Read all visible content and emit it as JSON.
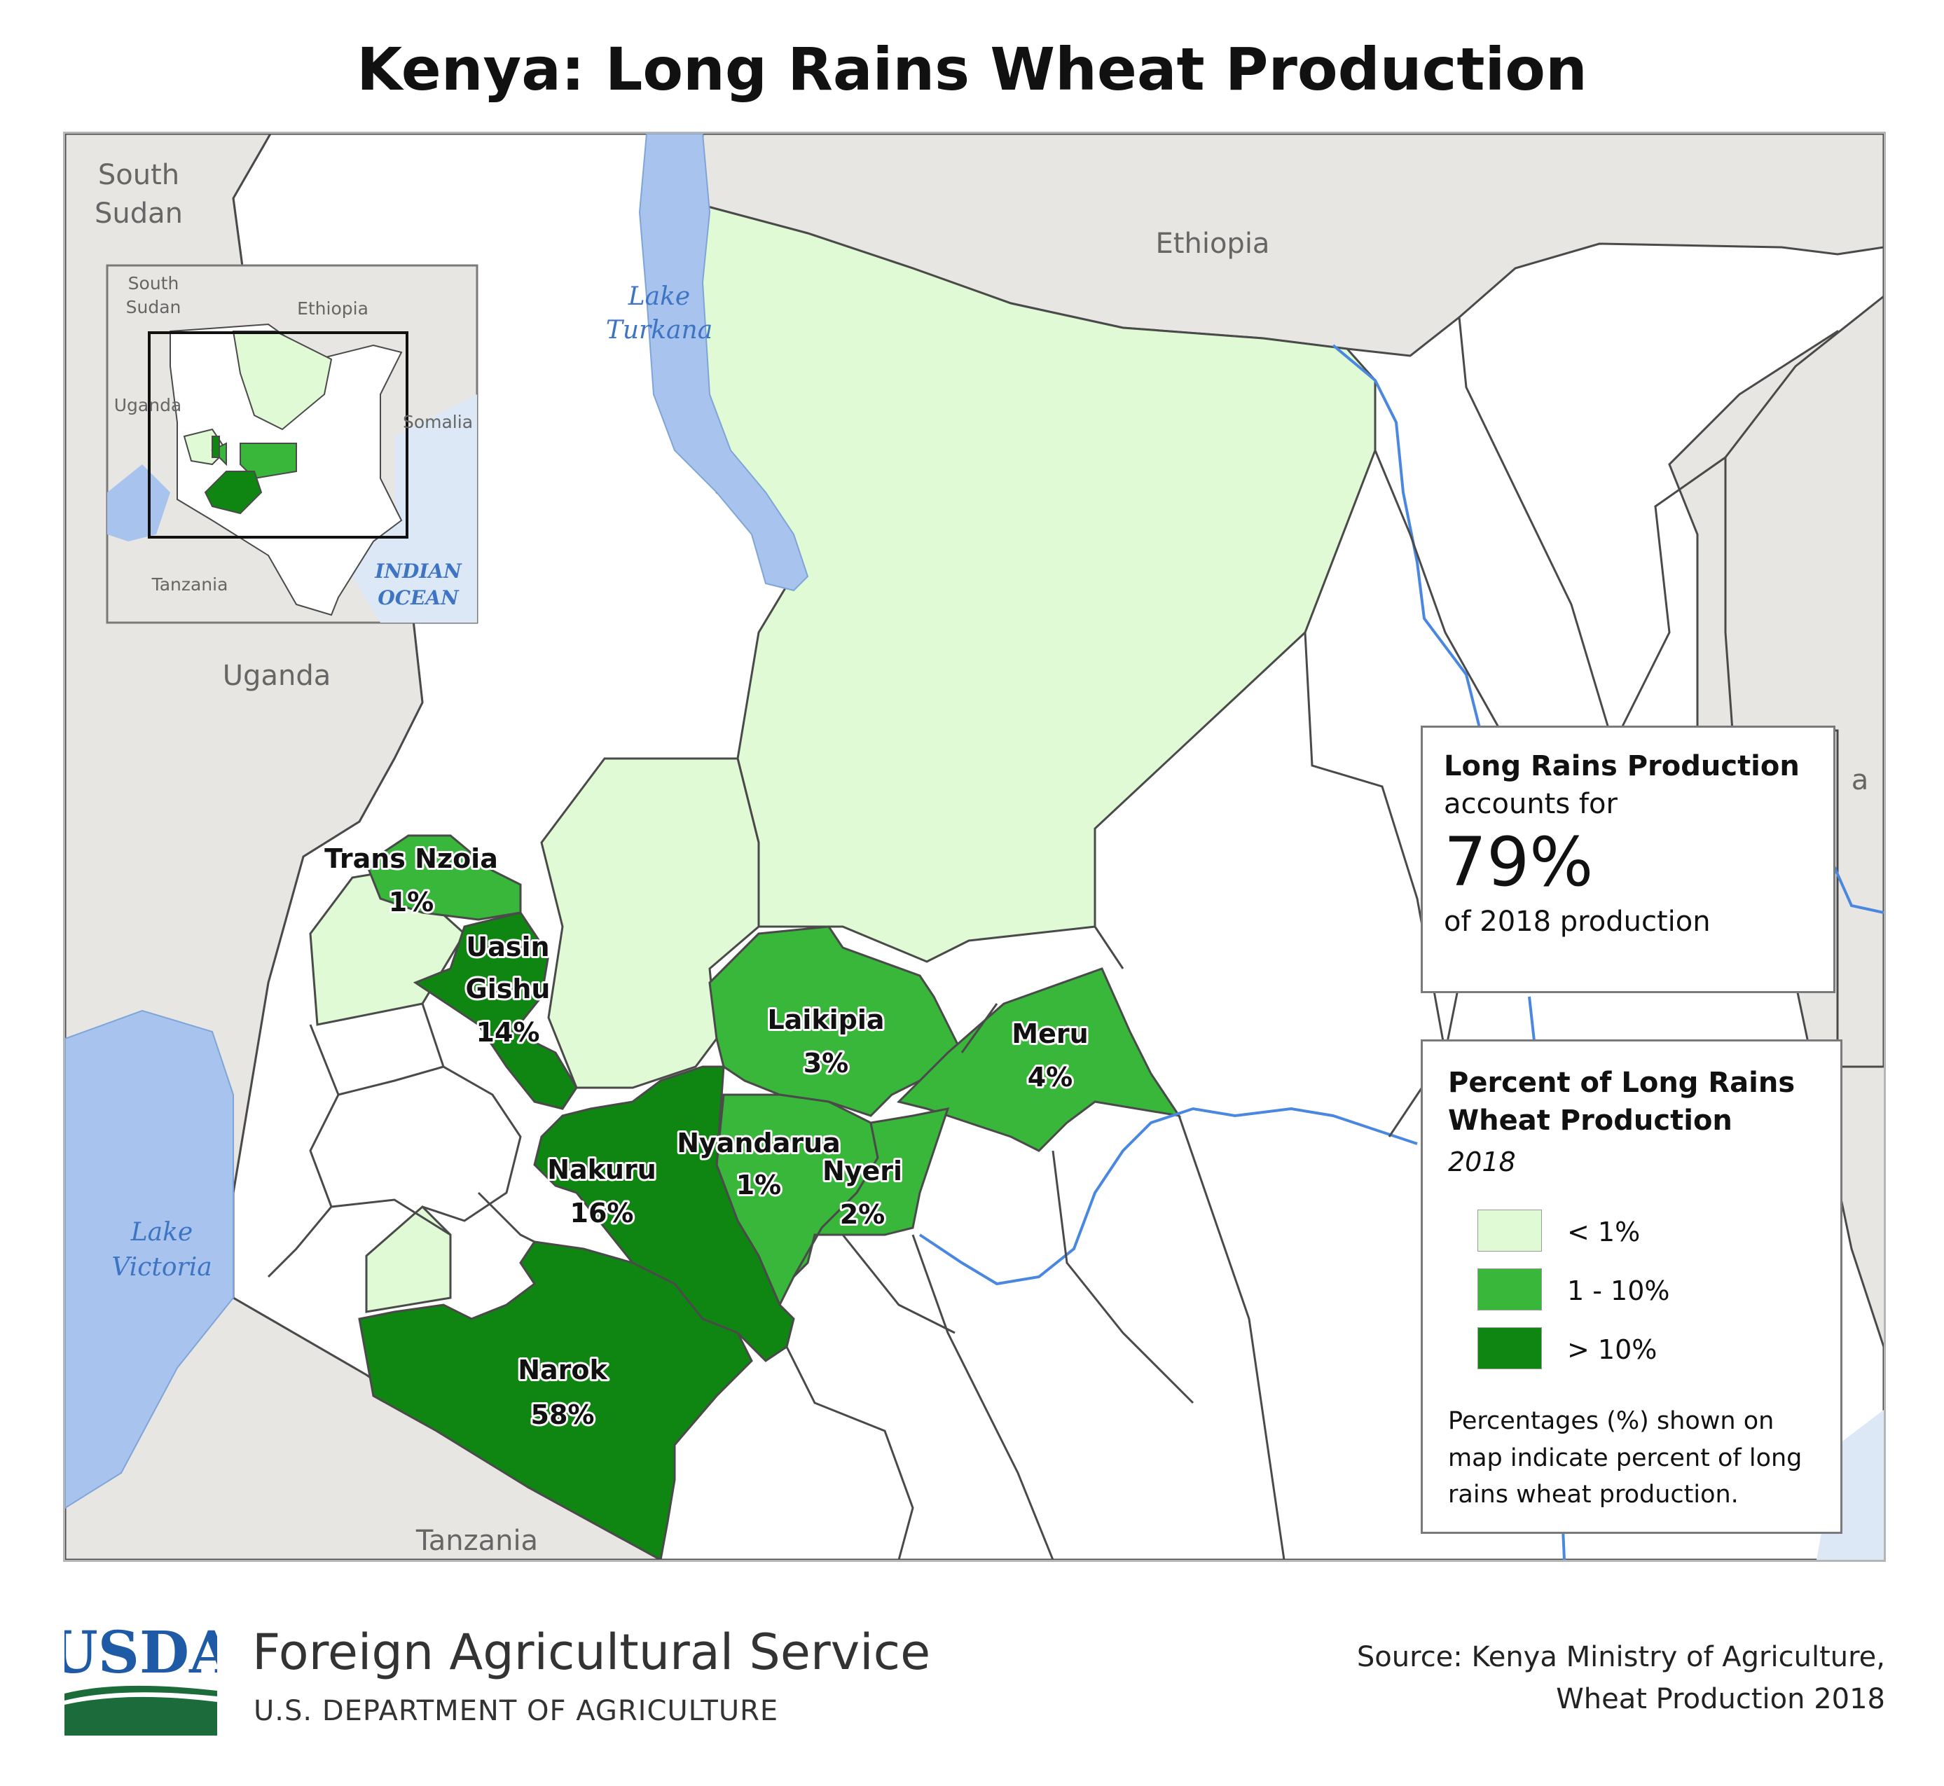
{
  "title": "Kenya: Long Rains Wheat Production",
  "colors": {
    "less_than_1": "#dffad4",
    "one_to_ten": "#39b73a",
    "greater_than_10": "#0f8612",
    "water": "#a8c4ee",
    "river": "#4a88e0",
    "neighbor": "#e7e6e2",
    "other_county": "#ffffff",
    "border": "#4a4a4a"
  },
  "map": {
    "countries": {
      "south_sudan_line1": "South",
      "south_sudan_line2": "Sudan",
      "ethiopia": "Ethiopia",
      "uganda": "Uganda",
      "tanzania": "Tanzania",
      "somalia_partial": "a"
    },
    "water": {
      "lake_turkana_line1": "Lake",
      "lake_turkana_line2": "Turkana",
      "lake_victoria_line1": "Lake",
      "lake_victoria_line2": "Victoria"
    },
    "counties": [
      {
        "name": "Trans Nzoia",
        "value": "1%",
        "class": "1 - 10%"
      },
      {
        "name_line1": "Uasin",
        "name_line2": "Gishu",
        "value": "14%",
        "class": "> 10%"
      },
      {
        "name": "Laikipia",
        "value": "3%",
        "class": "1 - 10%"
      },
      {
        "name": "Meru",
        "value": "4%",
        "class": "1 - 10%"
      },
      {
        "name": "Nyandarua",
        "value": "1%",
        "class": "1 - 10%"
      },
      {
        "name": "Nyeri",
        "value": "2%",
        "class": "1 - 10%"
      },
      {
        "name": "Nakuru",
        "value": "16%",
        "class": "> 10%"
      },
      {
        "name": "Narok",
        "value": "58%",
        "class": "> 10%"
      }
    ]
  },
  "inset": {
    "south_sudan_line1": "South",
    "south_sudan_line2": "Sudan",
    "ethiopia": "Ethiopia",
    "uganda": "Uganda",
    "somalia": "Somalia",
    "tanzania": "Tanzania",
    "indian_ocean_line1": "INDIAN",
    "indian_ocean_line2": "OCEAN"
  },
  "info_box": {
    "line1": "Long Rains Production",
    "line2": "accounts for",
    "big_value": "79%",
    "line3": "of 2018 production"
  },
  "legend": {
    "title_line1": "Percent of Long Rains",
    "title_line2": "Wheat Production",
    "year": "2018",
    "items": [
      {
        "label": "< 1%",
        "color": "#dffad4"
      },
      {
        "label": "1 - 10%",
        "color": "#39b73a"
      },
      {
        "label": "> 10%",
        "color": "#0f8612"
      }
    ],
    "note": "Percentages (%) shown on map indicate percent of long rains wheat production."
  },
  "footer": {
    "logo_text": "USDA",
    "agency": "Foreign Agricultural Service",
    "department": "U.S. DEPARTMENT OF AGRICULTURE",
    "source_line1": "Source: Kenya Ministry of Agriculture,",
    "source_line2": "Wheat Production 2018"
  }
}
